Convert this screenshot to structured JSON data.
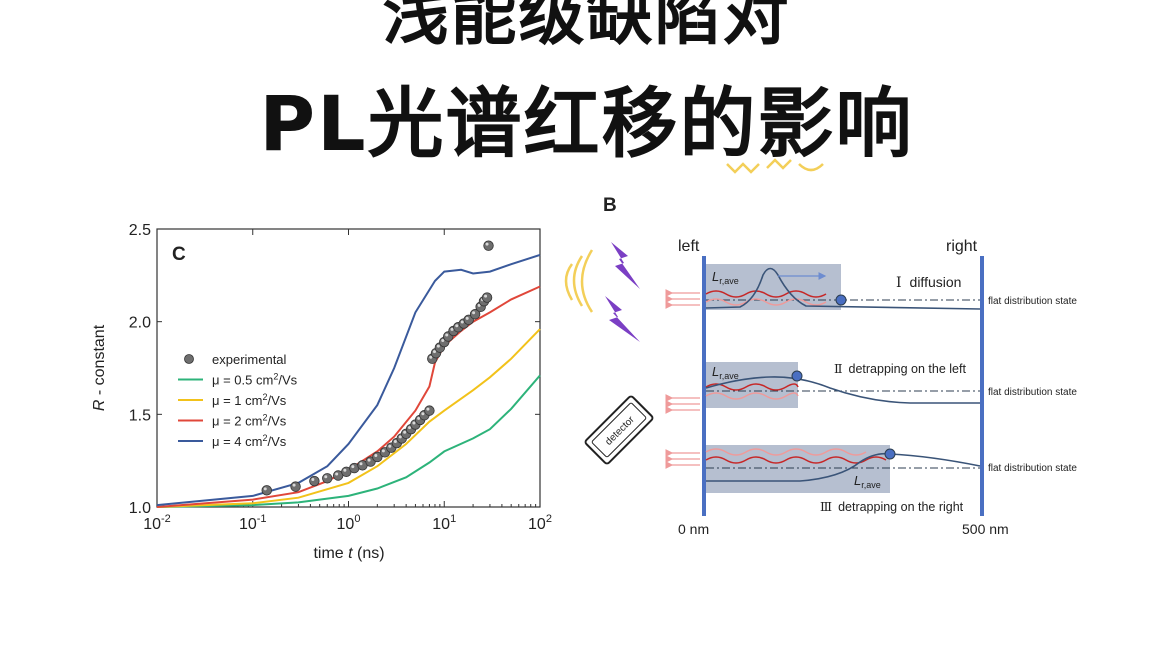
{
  "headline": {
    "line1": "浅能级缺陷对",
    "line2": "PL光谱红移的影响"
  },
  "chart_data": {
    "type": "line",
    "panel_label": "C",
    "xlabel_prefix": "time ",
    "xlabel_var": "t",
    "xlabel_suffix": " (ns)",
    "ylabel_var": "R",
    "ylabel_suffix": " - constant",
    "xscale": "log",
    "xlim": [
      0.01,
      100
    ],
    "ylim": [
      1.0,
      2.5
    ],
    "x_ticks": [
      {
        "x": 0.01,
        "base": "10",
        "exp": "-2"
      },
      {
        "x": 0.1,
        "base": "10",
        "exp": "-1"
      },
      {
        "x": 1,
        "base": "10",
        "exp": "0"
      },
      {
        "x": 10,
        "base": "10",
        "exp": "1"
      },
      {
        "x": 100,
        "base": "10",
        "exp": "2"
      }
    ],
    "y_ticks": [
      {
        "y": 1.0,
        "label": "1.0"
      },
      {
        "y": 1.5,
        "label": "1.5"
      },
      {
        "y": 2.0,
        "label": "2.0"
      },
      {
        "y": 2.5,
        "label": "2.5"
      }
    ],
    "legend_position": "middle-left",
    "legend": [
      {
        "key": "experimental",
        "text": "experimental"
      },
      {
        "key": "mu05",
        "pre": "μ = 0.5 cm",
        "sup": "2",
        "post": "/Vs"
      },
      {
        "key": "mu1",
        "pre": "μ = 1 cm",
        "sup": "2",
        "post": "/Vs"
      },
      {
        "key": "mu2",
        "pre": "μ = 2 cm",
        "sup": "2",
        "post": "/Vs"
      },
      {
        "key": "mu4",
        "pre": "μ = 4 cm",
        "sup": "2",
        "post": "/Vs"
      }
    ],
    "series": [
      {
        "key": "experimental",
        "name": "experimental",
        "style": "scatter",
        "color": "#555555",
        "points": [
          [
            0.14,
            1.09
          ],
          [
            0.28,
            1.11
          ],
          [
            0.44,
            1.14
          ],
          [
            0.6,
            1.155
          ],
          [
            0.78,
            1.17
          ],
          [
            0.95,
            1.19
          ],
          [
            1.15,
            1.21
          ],
          [
            1.4,
            1.225
          ],
          [
            1.7,
            1.245
          ],
          [
            2.0,
            1.27
          ],
          [
            2.4,
            1.295
          ],
          [
            2.8,
            1.32
          ],
          [
            3.2,
            1.345
          ],
          [
            3.6,
            1.37
          ],
          [
            4.0,
            1.395
          ],
          [
            4.5,
            1.42
          ],
          [
            5.0,
            1.445
          ],
          [
            5.6,
            1.47
          ],
          [
            6.2,
            1.495
          ],
          [
            7.0,
            1.52
          ],
          [
            7.5,
            1.8
          ],
          [
            8.2,
            1.83
          ],
          [
            9.0,
            1.86
          ],
          [
            10.0,
            1.89
          ],
          [
            11.0,
            1.92
          ],
          [
            12.5,
            1.95
          ],
          [
            14.0,
            1.97
          ],
          [
            16.0,
            1.99
          ],
          [
            18.0,
            2.01
          ],
          [
            21.0,
            2.04
          ],
          [
            24.0,
            2.08
          ],
          [
            26.0,
            2.11
          ],
          [
            28.0,
            2.13
          ],
          [
            29.0,
            2.41
          ]
        ]
      },
      {
        "key": "mu05",
        "name": "μ = 0.5 cm²/Vs",
        "style": "line",
        "color": "#2db37a",
        "points": [
          [
            0.01,
            1.0
          ],
          [
            0.1,
            1.01
          ],
          [
            0.3,
            1.025
          ],
          [
            1,
            1.06
          ],
          [
            2,
            1.1
          ],
          [
            4,
            1.16
          ],
          [
            7,
            1.24
          ],
          [
            10,
            1.3
          ],
          [
            20,
            1.37
          ],
          [
            30,
            1.42
          ],
          [
            50,
            1.53
          ],
          [
            100,
            1.71
          ]
        ]
      },
      {
        "key": "mu1",
        "name": "μ = 1 cm²/Vs",
        "style": "line",
        "color": "#f2c21a",
        "points": [
          [
            0.01,
            1.0
          ],
          [
            0.1,
            1.02
          ],
          [
            0.3,
            1.05
          ],
          [
            1,
            1.13
          ],
          [
            2,
            1.22
          ],
          [
            4,
            1.34
          ],
          [
            7,
            1.46
          ],
          [
            10,
            1.52
          ],
          [
            20,
            1.63
          ],
          [
            30,
            1.7
          ],
          [
            50,
            1.8
          ],
          [
            100,
            1.96
          ]
        ]
      },
      {
        "key": "mu2",
        "name": "μ = 2 cm²/Vs",
        "style": "line",
        "color": "#e0473a",
        "points": [
          [
            0.01,
            1.0
          ],
          [
            0.1,
            1.04
          ],
          [
            0.3,
            1.08
          ],
          [
            0.6,
            1.14
          ],
          [
            1,
            1.2
          ],
          [
            2,
            1.3
          ],
          [
            3,
            1.38
          ],
          [
            5,
            1.52
          ],
          [
            7,
            1.65
          ],
          [
            8,
            1.78
          ],
          [
            10,
            1.87
          ],
          [
            15,
            1.95
          ],
          [
            20,
            2.0
          ],
          [
            30,
            2.05
          ],
          [
            50,
            2.12
          ],
          [
            100,
            2.19
          ]
        ]
      },
      {
        "key": "mu4",
        "name": "μ = 4 cm²/Vs",
        "style": "line",
        "color": "#3a5a9c",
        "points": [
          [
            0.01,
            1.01
          ],
          [
            0.1,
            1.06
          ],
          [
            0.3,
            1.13
          ],
          [
            0.6,
            1.22
          ],
          [
            1,
            1.34
          ],
          [
            2,
            1.55
          ],
          [
            3,
            1.75
          ],
          [
            5,
            2.05
          ],
          [
            8,
            2.22
          ],
          [
            10,
            2.27
          ],
          [
            15,
            2.28
          ],
          [
            20,
            2.26
          ],
          [
            30,
            2.27
          ],
          [
            50,
            2.31
          ],
          [
            100,
            2.36
          ]
        ]
      }
    ]
  },
  "diagram": {
    "panel_label": "B",
    "left_label": "left",
    "right_label": "right",
    "left_axis_label": "0 nm",
    "right_axis_label": "500 nm",
    "detector_label": "detector",
    "lr_label_main": "L",
    "lr_label_sub": "r,ave",
    "flat_state_label": "flat distribution state",
    "rows": [
      {
        "roman": "Ⅰ",
        "text": "diffusion"
      },
      {
        "roman": "Ⅱ",
        "text": "detrapping on the left"
      },
      {
        "roman": "Ⅲ",
        "text": "detrapping on the right"
      }
    ],
    "colors": {
      "wall": "#4a6fc2",
      "box": "#a9b4c8",
      "curve": "#3a5478",
      "wave_dark": "#c62828",
      "wave_light": "#ef9a9a",
      "lightning": "#7b3fc4",
      "signal": "#f3cf59"
    }
  }
}
